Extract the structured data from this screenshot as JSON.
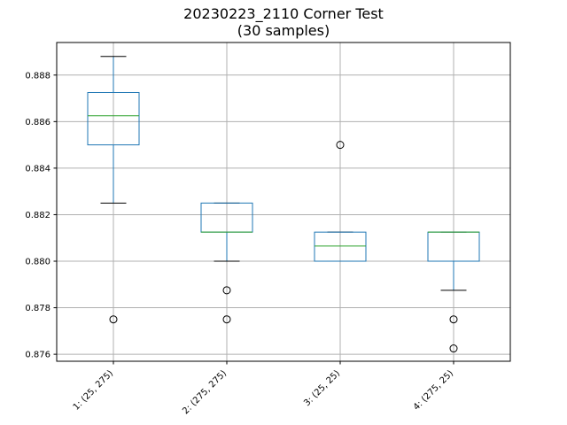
{
  "chart_data": {
    "type": "box",
    "title": "20230223_2110 Corner Test",
    "subtitle": "(30 samples)",
    "xlabel": "",
    "ylabel": "",
    "ylim": [
      0.8757,
      0.8894
    ],
    "y_ticks": [
      0.876,
      0.878,
      0.88,
      0.882,
      0.884,
      0.886,
      0.888
    ],
    "y_tick_labels": [
      "0.876",
      "0.878",
      "0.880",
      "0.882",
      "0.884",
      "0.886",
      "0.888"
    ],
    "grid": true,
    "categories": [
      "1: (25, 275)",
      "2: (275, 275)",
      "3: (25, 25)",
      "4: (275, 25)"
    ],
    "boxes": [
      {
        "whisker_low": 0.8825,
        "q1": 0.885,
        "median": 0.88625,
        "q3": 0.88725,
        "whisker_high": 0.8888,
        "outliers": [
          0.8775
        ]
      },
      {
        "whisker_low": 0.88,
        "q1": 0.88125,
        "median": 0.88125,
        "q3": 0.8825,
        "whisker_high": 0.8825,
        "outliers": [
          0.87875,
          0.8775
        ]
      },
      {
        "whisker_low": 0.88,
        "q1": 0.88,
        "median": 0.88065,
        "q3": 0.88125,
        "whisker_high": 0.88125,
        "outliers": [
          0.885
        ]
      },
      {
        "whisker_low": 0.87875,
        "q1": 0.88,
        "median": 0.88125,
        "q3": 0.88125,
        "whisker_high": 0.88125,
        "outliers": [
          0.8775,
          0.87625
        ]
      }
    ],
    "colors": {
      "box": "#1f77b4",
      "median": "#2ca02c",
      "grid": "#b0b0b0",
      "axis": "#000000"
    }
  }
}
